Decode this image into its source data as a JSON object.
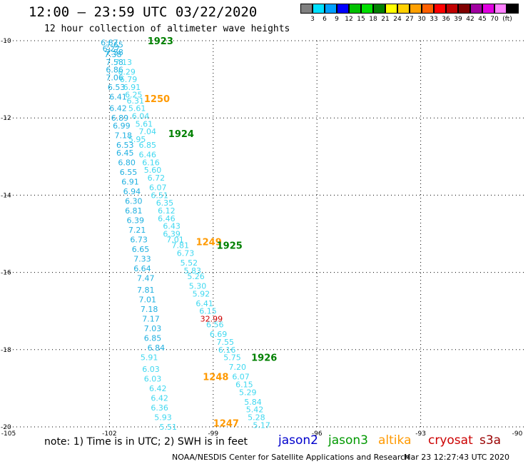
{
  "title": "12:00 – 23:59 UTC 03/22/2020",
  "subtitle": "12 hour collection of altimeter wave heights",
  "legend": {
    "unit": "(ft)",
    "colors": [
      "#808080",
      "#00e0ff",
      "#00a0ff",
      "#0000ff",
      "#00c000",
      "#00e000",
      "#008000",
      "#ffff00",
      "#ffd000",
      "#ffa000",
      "#ff6000",
      "#ff0000",
      "#c00000",
      "#800000",
      "#a000a0",
      "#e000e0",
      "#ff80ff",
      "#000000"
    ],
    "labels": [
      "3",
      "6",
      "9",
      "12",
      "15",
      "18",
      "21",
      "24",
      "27",
      "30",
      "33",
      "36",
      "39",
      "42",
      "45",
      "70"
    ]
  },
  "axes": {
    "lon_ticks": [
      "-105",
      "-102",
      "-99",
      "-96",
      "-93",
      "-90"
    ],
    "lat_ticks": [
      "-10",
      "-12",
      "-14",
      "-16",
      "-18",
      "-20"
    ]
  },
  "passes": [
    {
      "label": "1923",
      "color": "#008000",
      "lon": -100.9,
      "lat": -10.0
    },
    {
      "label": "1250",
      "color": "#ff9900",
      "lon": -101.0,
      "lat": -11.5
    },
    {
      "label": "1924",
      "color": "#008000",
      "lon": -100.3,
      "lat": -12.4
    },
    {
      "label": "1249",
      "color": "#ff9900",
      "lon": -99.5,
      "lat": -15.2
    },
    {
      "label": "1925",
      "color": "#008000",
      "lon": -98.9,
      "lat": -15.3
    },
    {
      "label": "1926",
      "color": "#008000",
      "lon": -97.9,
      "lat": -18.2
    },
    {
      "label": "1248",
      "color": "#ff9900",
      "lon": -99.3,
      "lat": -18.7
    },
    {
      "label": "1247",
      "color": "#ff9900",
      "lon": -99.0,
      "lat": -19.9
    }
  ],
  "tracks": [
    {
      "name": "west",
      "color": "#20b0e0",
      "points": [
        {
          "v": "6.87",
          "lon": -102.0,
          "lat": -10.05
        },
        {
          "v": "6.27",
          "lon": -101.95,
          "lat": -10.2
        },
        {
          "v": "7.38",
          "lon": -101.9,
          "lat": -10.35
        },
        {
          "v": "7.58",
          "lon": -101.85,
          "lat": -10.55
        },
        {
          "v": "6.86",
          "lon": -101.85,
          "lat": -10.75
        },
        {
          "v": "7.06",
          "lon": -101.85,
          "lat": -10.95
        },
        {
          "v": "6.53",
          "lon": -101.8,
          "lat": -11.2
        },
        {
          "v": "6.41",
          "lon": -101.75,
          "lat": -11.45
        },
        {
          "v": "6.42",
          "lon": -101.75,
          "lat": -11.75
        },
        {
          "v": "6.89",
          "lon": -101.7,
          "lat": -12.0
        },
        {
          "v": "6.99",
          "lon": -101.65,
          "lat": -12.2
        },
        {
          "v": "7.18",
          "lon": -101.6,
          "lat": -12.45
        },
        {
          "v": "6.53",
          "lon": -101.55,
          "lat": -12.7
        },
        {
          "v": "6.45",
          "lon": -101.55,
          "lat": -12.9
        },
        {
          "v": "6.80",
          "lon": -101.5,
          "lat": -13.15
        },
        {
          "v": "6.55",
          "lon": -101.45,
          "lat": -13.4
        },
        {
          "v": "6.91",
          "lon": -101.4,
          "lat": -13.65
        },
        {
          "v": "6.94",
          "lon": -101.35,
          "lat": -13.9
        },
        {
          "v": "6.30",
          "lon": -101.3,
          "lat": -14.15
        },
        {
          "v": "6.81",
          "lon": -101.3,
          "lat": -14.4
        },
        {
          "v": "6.39",
          "lon": -101.25,
          "lat": -14.65
        },
        {
          "v": "7.21",
          "lon": -101.2,
          "lat": -14.9
        },
        {
          "v": "6.73",
          "lon": -101.15,
          "lat": -15.15
        },
        {
          "v": "6.65",
          "lon": -101.1,
          "lat": -15.4
        },
        {
          "v": "7.33",
          "lon": -101.05,
          "lat": -15.65
        },
        {
          "v": "6.64",
          "lon": -101.05,
          "lat": -15.9
        },
        {
          "v": "7.47",
          "lon": -100.95,
          "lat": -16.15
        },
        {
          "v": "7.81",
          "lon": -100.95,
          "lat": -16.45
        },
        {
          "v": "7.01",
          "lon": -100.9,
          "lat": -16.7
        },
        {
          "v": "7.18",
          "lon": -100.85,
          "lat": -16.95
        },
        {
          "v": "7.17",
          "lon": -100.8,
          "lat": -17.2
        },
        {
          "v": "7.03",
          "lon": -100.75,
          "lat": -17.45
        },
        {
          "v": "6.85",
          "lon": -100.75,
          "lat": -17.7
        },
        {
          "v": "6.84",
          "lon": -100.65,
          "lat": -17.95
        }
      ]
    },
    {
      "name": "mid",
      "color": "#40d8f0",
      "points": [
        {
          "v": "7.13",
          "lon": -101.6,
          "lat": -10.55
        },
        {
          "v": "6.29",
          "lon": -101.5,
          "lat": -10.8
        },
        {
          "v": "6.79",
          "lon": -101.45,
          "lat": -11.0
        },
        {
          "v": "6.91",
          "lon": -101.35,
          "lat": -11.2
        },
        {
          "v": "6.25",
          "lon": -101.3,
          "lat": -11.4
        },
        {
          "v": "6.31",
          "lon": -101.25,
          "lat": -11.55
        },
        {
          "v": "5.61",
          "lon": -101.2,
          "lat": -11.75
        },
        {
          "v": "6.04",
          "lon": -101.1,
          "lat": -11.95
        },
        {
          "v": "5.61",
          "lon": -101.0,
          "lat": -12.15
        },
        {
          "v": "7.04",
          "lon": -100.9,
          "lat": -12.35
        },
        {
          "v": "5.95",
          "lon": -101.2,
          "lat": -12.55
        },
        {
          "v": "6.85",
          "lon": -100.9,
          "lat": -12.7
        },
        {
          "v": "6.46",
          "lon": -100.9,
          "lat": -12.95
        },
        {
          "v": "6.16",
          "lon": -100.8,
          "lat": -13.15
        },
        {
          "v": "5.60",
          "lon": -100.75,
          "lat": -13.35
        },
        {
          "v": "6.72",
          "lon": -100.65,
          "lat": -13.55
        },
        {
          "v": "6.07",
          "lon": -100.6,
          "lat": -13.8
        },
        {
          "v": "6.51",
          "lon": -100.55,
          "lat": -14.0
        },
        {
          "v": "6.35",
          "lon": -100.4,
          "lat": -14.2
        },
        {
          "v": "6.12",
          "lon": -100.35,
          "lat": -14.4
        },
        {
          "v": "6.46",
          "lon": -100.35,
          "lat": -14.6
        },
        {
          "v": "6.43",
          "lon": -100.2,
          "lat": -14.8
        },
        {
          "v": "6.39",
          "lon": -100.2,
          "lat": -15.0
        },
        {
          "v": "7.01",
          "lon": -100.1,
          "lat": -15.15
        },
        {
          "v": "7.81",
          "lon": -99.95,
          "lat": -15.3
        },
        {
          "v": "6.73",
          "lon": -99.8,
          "lat": -15.5
        },
        {
          "v": "5.52",
          "lon": -99.7,
          "lat": -15.75
        },
        {
          "v": "5.83",
          "lon": -99.6,
          "lat": -15.95
        },
        {
          "v": "5.26",
          "lon": -99.5,
          "lat": -16.1
        },
        {
          "v": "5.30",
          "lon": -99.45,
          "lat": -16.35
        },
        {
          "v": "5.92",
          "lon": -99.35,
          "lat": -16.55
        },
        {
          "v": "6.41",
          "lon": -99.25,
          "lat": -16.8
        },
        {
          "v": "6.15",
          "lon": -99.15,
          "lat": -17.0
        },
        {
          "v": "6.56",
          "lon": -98.95,
          "lat": -17.35
        },
        {
          "v": "6.69",
          "lon": -98.85,
          "lat": -17.6
        },
        {
          "v": "7.55",
          "lon": -98.65,
          "lat": -17.8
        },
        {
          "v": "6.16",
          "lon": -98.6,
          "lat": -18.0
        },
        {
          "v": "5.75",
          "lon": -98.45,
          "lat": -18.2
        },
        {
          "v": "7.20",
          "lon": -98.3,
          "lat": -18.45
        },
        {
          "v": "6.07",
          "lon": -98.2,
          "lat": -18.7
        },
        {
          "v": "6.15",
          "lon": -98.1,
          "lat": -18.9
        },
        {
          "v": "5.29",
          "lon": -98.0,
          "lat": -19.1
        },
        {
          "v": "5.84",
          "lon": -97.85,
          "lat": -19.35
        },
        {
          "v": "5.42",
          "lon": -97.8,
          "lat": -19.55
        },
        {
          "v": "5.28",
          "lon": -97.75,
          "lat": -19.75
        },
        {
          "v": "5.17",
          "lon": -97.6,
          "lat": -19.95
        }
      ]
    },
    {
      "name": "south",
      "color": "#40d8f0",
      "points": [
        {
          "v": "5.91",
          "lon": -100.85,
          "lat": -18.2
        },
        {
          "v": "6.03",
          "lon": -100.8,
          "lat": -18.5
        },
        {
          "v": "6.03",
          "lon": -100.75,
          "lat": -18.75
        },
        {
          "v": "6.42",
          "lon": -100.6,
          "lat": -19.0
        },
        {
          "v": "6.42",
          "lon": -100.55,
          "lat": -19.25
        },
        {
          "v": "6.36",
          "lon": -100.55,
          "lat": -19.5
        },
        {
          "v": "5.93",
          "lon": -100.45,
          "lat": -19.75
        },
        {
          "v": "5.51",
          "lon": -100.3,
          "lat": -20.0
        }
      ]
    },
    {
      "name": "cryosat",
      "color": "#cc0000",
      "points": [
        {
          "v": "32.99",
          "lon": -99.05,
          "lat": -17.2
        }
      ]
    },
    {
      "name": "top-extra",
      "color": "#20b0e0",
      "points": [
        {
          "v": "7.58",
          "lon": -101.85,
          "lat": -10.3
        },
        {
          "v": "7.65",
          "lon": -101.85,
          "lat": -10.1
        }
      ]
    }
  ],
  "satellites": [
    {
      "name": "jason2",
      "color": "#0000cc"
    },
    {
      "name": "jason3",
      "color": "#009900"
    },
    {
      "name": "altika",
      "color": "#ff9900"
    },
    {
      "name": "cryosat",
      "color": "#cc0000"
    },
    {
      "name": "s3a",
      "color": "#990000"
    }
  ],
  "note": "note: 1) Time is in UTC; 2) SWH is in feet",
  "credit": "NOAA/NESDIS Center for Satellite Applications and Research",
  "timestamp": "Mar 23 12:27:43 UTC 2020"
}
